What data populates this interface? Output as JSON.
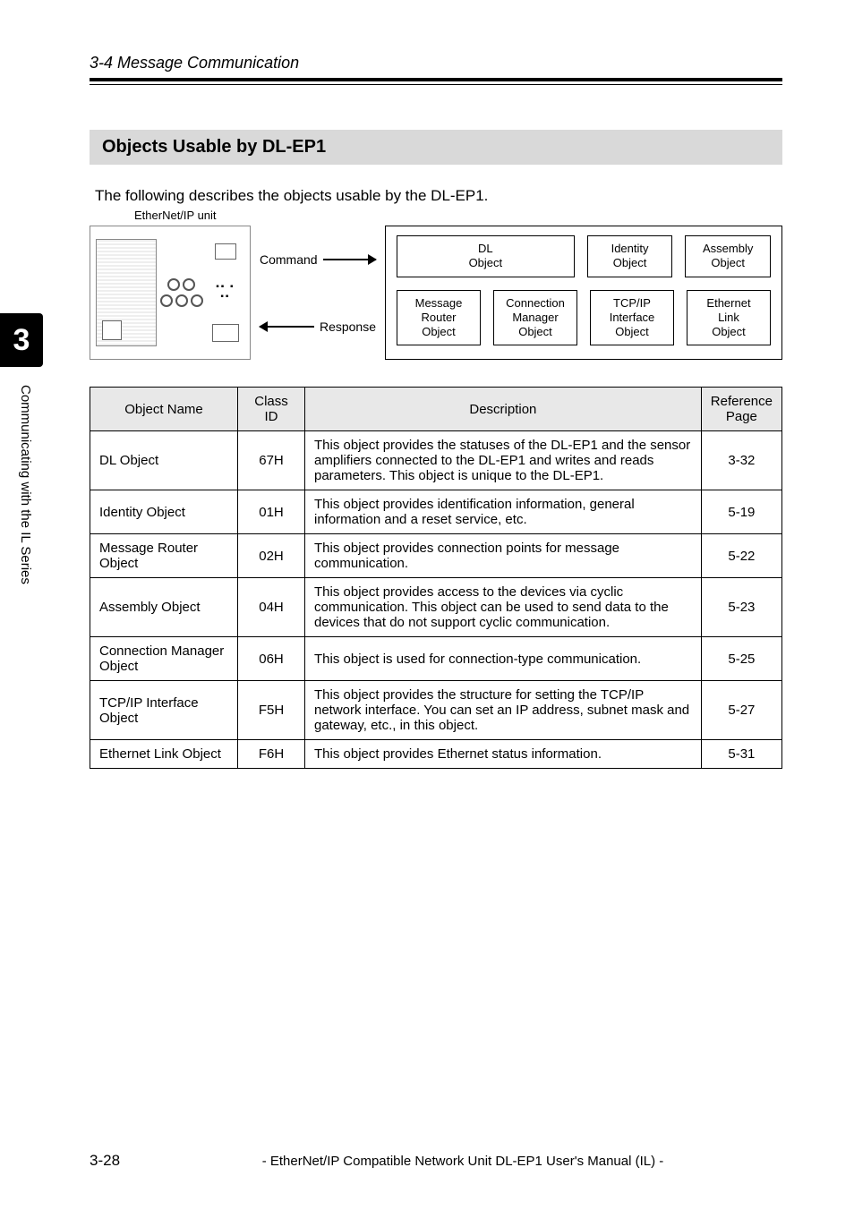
{
  "header": {
    "section_title": "3-4 Message Communication",
    "subsection_title": "Objects Usable by DL-EP1",
    "intro": "The following describes the objects usable by the DL-EP1.",
    "caption": "EtherNet/IP unit"
  },
  "sidebar": {
    "chapter_number": "3",
    "chapter_label": "Communicating with the IL Series"
  },
  "diagram": {
    "command_label": "Command",
    "response_label": "Response",
    "row1": [
      "DL\nObject",
      "Identity\nObject",
      "Assembly\nObject"
    ],
    "row2": [
      "Message\nRouter\nObject",
      "Connection\nManager\nObject",
      "TCP/IP\nInterface\nObject",
      "Ethernet\nLink\nObject"
    ]
  },
  "table": {
    "headers": [
      "Object Name",
      "Class ID",
      "Description",
      "Reference Page"
    ],
    "rows": [
      {
        "name": "DL Object",
        "class_id": "67H",
        "desc": "This object provides the statuses of the DL-EP1 and the sensor amplifiers connected to the DL-EP1 and writes and reads parameters. This object is unique to the DL-EP1.",
        "ref": "3-32"
      },
      {
        "name": "Identity Object",
        "class_id": "01H",
        "desc": "This object provides identification information, general information and a reset service, etc.",
        "ref": "5-19"
      },
      {
        "name": "Message Router Object",
        "class_id": "02H",
        "desc": "This object provides connection points for message communication.",
        "ref": "5-22"
      },
      {
        "name": "Assembly Object",
        "class_id": "04H",
        "desc": "This object provides access to the devices via cyclic communication. This object can be used to send data to the devices that do not support cyclic communication.",
        "ref": "5-23"
      },
      {
        "name": "Connection Manager Object",
        "class_id": "06H",
        "desc": "This object is used for connection-type communication.",
        "ref": "5-25"
      },
      {
        "name": "TCP/IP Interface Object",
        "class_id": "F5H",
        "desc": "This object provides the structure for setting the TCP/IP network interface. You can set an IP address, subnet mask and gateway, etc., in this object.",
        "ref": "5-27"
      },
      {
        "name": "Ethernet Link Object",
        "class_id": "F6H",
        "desc": "This object provides Ethernet status information.",
        "ref": "5-31"
      }
    ]
  },
  "footer": {
    "page": "3-28",
    "title": "- EtherNet/IP Compatible Network Unit DL-EP1 User's Manual (IL) -"
  }
}
